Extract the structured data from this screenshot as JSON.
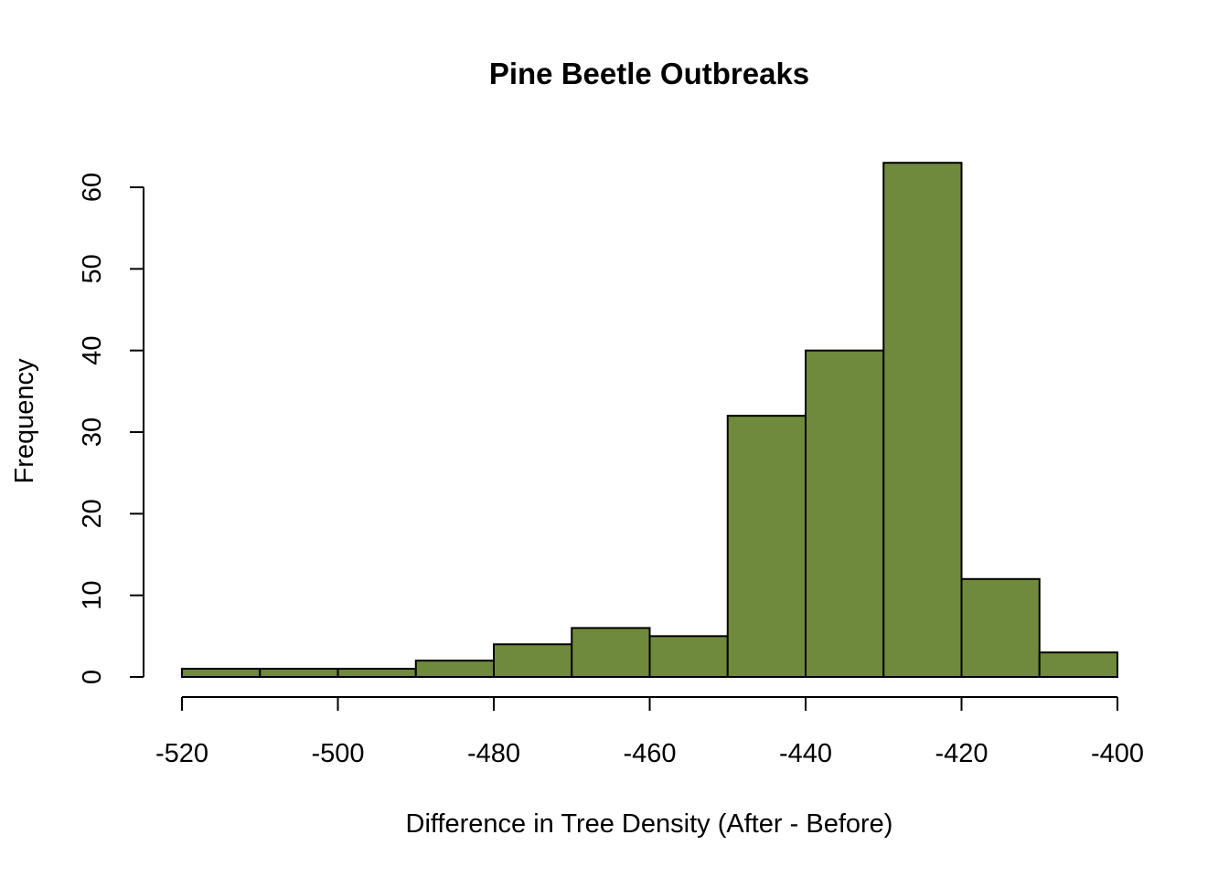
{
  "chart_data": {
    "type": "bar",
    "title": "Pine Beetle Outbreaks",
    "xlabel": "Difference in Tree Density (After - Before)",
    "ylabel": "Frequency",
    "bins": [
      {
        "x0": -520,
        "x1": -510,
        "count": 1
      },
      {
        "x0": -510,
        "x1": -500,
        "count": 1
      },
      {
        "x0": -500,
        "x1": -490,
        "count": 1
      },
      {
        "x0": -490,
        "x1": -480,
        "count": 2
      },
      {
        "x0": -480,
        "x1": -470,
        "count": 4
      },
      {
        "x0": -470,
        "x1": -460,
        "count": 6
      },
      {
        "x0": -460,
        "x1": -450,
        "count": 5
      },
      {
        "x0": -450,
        "x1": -440,
        "count": 32
      },
      {
        "x0": -440,
        "x1": -430,
        "count": 40
      },
      {
        "x0": -430,
        "x1": -420,
        "count": 63
      },
      {
        "x0": -420,
        "x1": -410,
        "count": 12
      },
      {
        "x0": -410,
        "x1": -400,
        "count": 3
      }
    ],
    "x_ticks": [
      "-520",
      "-500",
      "-480",
      "-460",
      "-440",
      "-420",
      "-400"
    ],
    "y_ticks": [
      "0",
      "10",
      "20",
      "30",
      "40",
      "50",
      "60"
    ],
    "xlim": [
      -520,
      -400
    ],
    "ylim": [
      0,
      60
    ],
    "grid": false,
    "legend": "none",
    "bar_color": "#6f8a3c",
    "edge_color": "#000000"
  }
}
